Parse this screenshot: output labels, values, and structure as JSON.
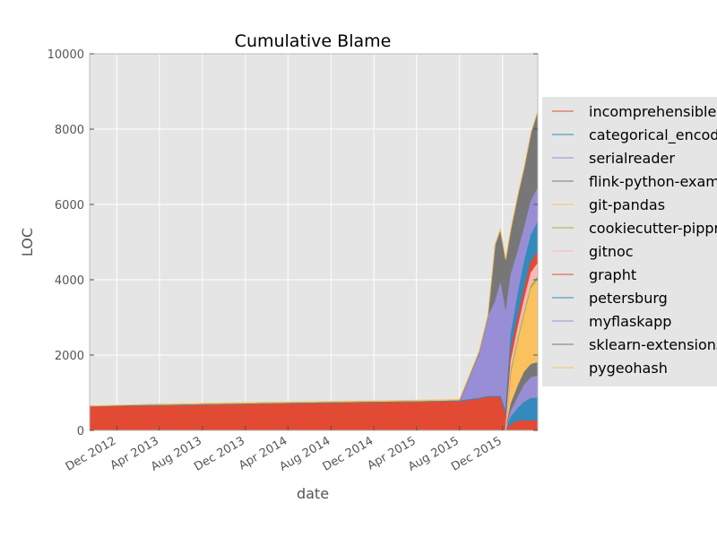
{
  "chart_data": {
    "type": "area",
    "stacked": true,
    "title": "Cumulative Blame",
    "xlabel": "date",
    "ylabel": "LOC",
    "ylim": [
      0,
      10000
    ],
    "yticks": [
      0,
      2000,
      4000,
      6000,
      8000,
      10000
    ],
    "xlim": [
      "2012-09-15",
      "2016-03-10"
    ],
    "xticks": [
      {
        "date": "2012-12-01",
        "label": "Dec 2012"
      },
      {
        "date": "2013-04-01",
        "label": "Apr 2013"
      },
      {
        "date": "2013-08-01",
        "label": "Aug 2013"
      },
      {
        "date": "2013-12-01",
        "label": "Dec 2013"
      },
      {
        "date": "2014-04-01",
        "label": "Apr 2014"
      },
      {
        "date": "2014-08-01",
        "label": "Aug 2014"
      },
      {
        "date": "2014-12-01",
        "label": "Dec 2014"
      },
      {
        "date": "2015-04-01",
        "label": "Apr 2015"
      },
      {
        "date": "2015-08-01",
        "label": "Aug 2015"
      },
      {
        "date": "2015-12-01",
        "label": "Dec 2015"
      }
    ],
    "grid": true,
    "legend_position": "right, outside plot",
    "x": [
      "2012-09-15",
      "2013-04-01",
      "2013-12-01",
      "2014-08-01",
      "2015-04-01",
      "2015-08-01",
      "2015-09-25",
      "2015-10-20",
      "2015-11-10",
      "2015-11-25",
      "2015-12-10",
      "2015-12-25",
      "2016-01-15",
      "2016-02-01",
      "2016-02-20",
      "2016-03-10"
    ],
    "series": [
      {
        "name": "incomprehensible",
        "color": "#e24a33",
        "values": [
          0,
          0,
          0,
          0,
          0,
          0,
          0,
          0,
          0,
          0,
          0,
          150,
          250,
          250,
          250,
          250
        ]
      },
      {
        "name": "categorical_encoders",
        "color": "#348abd",
        "values": [
          0,
          0,
          0,
          0,
          0,
          0,
          0,
          0,
          0,
          0,
          0,
          200,
          350,
          500,
          600,
          600
        ]
      },
      {
        "name": "serialreader",
        "color": "#988ed5",
        "values": [
          0,
          0,
          0,
          0,
          0,
          0,
          0,
          0,
          0,
          0,
          0,
          150,
          300,
          450,
          550,
          600
        ]
      },
      {
        "name": "flink-python-examples",
        "color": "#777777",
        "values": [
          0,
          0,
          0,
          0,
          0,
          0,
          0,
          0,
          0,
          0,
          0,
          200,
          300,
          350,
          350,
          350
        ]
      },
      {
        "name": "git-pandas",
        "color": "#fbc15e",
        "values": [
          0,
          0,
          0,
          0,
          0,
          0,
          0,
          0,
          0,
          0,
          0,
          800,
          1200,
          1500,
          2000,
          2200
        ]
      },
      {
        "name": "cookiecutter-pipproject",
        "color": "#8eba42",
        "values": [
          0,
          0,
          0,
          0,
          0,
          0,
          0,
          0,
          0,
          0,
          0,
          80,
          80,
          80,
          80,
          80
        ]
      },
      {
        "name": "gitnoc",
        "color": "#ffb5b8",
        "values": [
          0,
          0,
          0,
          0,
          0,
          0,
          0,
          0,
          0,
          0,
          0,
          250,
          300,
          350,
          350,
          350
        ]
      },
      {
        "name": "grapht",
        "color": "#e24a33",
        "values": [
          650,
          660,
          700,
          730,
          760,
          780,
          850,
          900,
          900,
          900,
          300,
          300,
          300,
          300,
          300,
          300
        ]
      },
      {
        "name": "petersburg",
        "color": "#348abd",
        "values": [
          0,
          0,
          0,
          0,
          0,
          0,
          0,
          0,
          0,
          0,
          200,
          400,
          600,
          700,
          700,
          800
        ]
      },
      {
        "name": "myflaskapp",
        "color": "#988ed5",
        "values": [
          0,
          0,
          0,
          0,
          0,
          0,
          1200,
          2100,
          2500,
          3000,
          2600,
          1600,
          1100,
          900,
          900,
          900
        ]
      },
      {
        "name": "sklearn-extensions",
        "color": "#777777",
        "values": [
          0,
          0,
          0,
          0,
          0,
          0,
          0,
          0,
          1500,
          1400,
          1400,
          1200,
          1500,
          1600,
          1800,
          2000
        ]
      },
      {
        "name": "pygeohash",
        "color": "#fbc15e",
        "values": [
          0,
          40,
          40,
          40,
          40,
          40,
          40,
          40,
          40,
          40,
          40,
          40,
          40,
          40,
          40,
          50
        ]
      }
    ]
  }
}
